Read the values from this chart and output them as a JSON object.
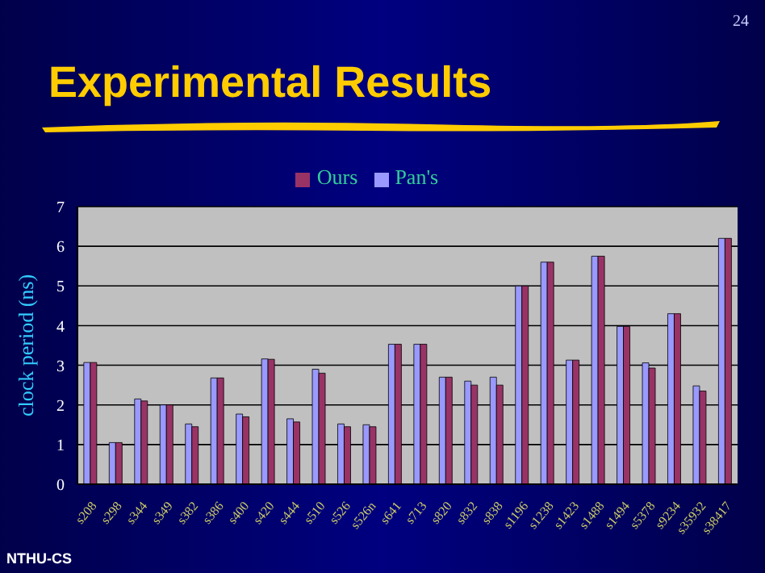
{
  "chart_data": {
    "type": "bar",
    "title": "Experimental Results",
    "ylabel": "clock period (ns)",
    "categories": [
      "s208",
      "s298",
      "s344",
      "s349",
      "s382",
      "s386",
      "s400",
      "s420",
      "s444",
      "s510",
      "s526",
      "s526n",
      "s641",
      "s713",
      "s820",
      "s832",
      "s838",
      "s1196",
      "s1238",
      "s1423",
      "s1488",
      "s1494",
      "s5378",
      "s9234",
      "s35932",
      "s38417"
    ],
    "series": [
      {
        "name": "Pan's",
        "color": "#9999ff",
        "values": [
          3.07,
          1.05,
          2.15,
          2.0,
          1.52,
          2.68,
          1.77,
          3.16,
          1.65,
          2.9,
          1.52,
          1.5,
          3.53,
          3.53,
          2.7,
          2.6,
          2.7,
          5.0,
          5.6,
          3.13,
          5.75,
          3.98,
          3.06,
          4.3,
          2.48,
          6.2
        ]
      },
      {
        "name": "Ours",
        "color": "#993366",
        "values": [
          3.07,
          1.05,
          2.1,
          2.0,
          1.45,
          2.68,
          1.7,
          3.15,
          1.57,
          2.8,
          1.45,
          1.45,
          3.53,
          3.53,
          2.7,
          2.5,
          2.5,
          5.0,
          5.6,
          3.13,
          5.75,
          3.98,
          2.93,
          4.3,
          2.35,
          6.2
        ]
      }
    ],
    "ylim": [
      0,
      7
    ],
    "yticks": [
      0,
      1,
      2,
      3,
      4,
      5,
      6,
      7
    ],
    "grid": "y",
    "legend": "top",
    "annotations": [
      "24",
      "NTHU-CS"
    ]
  }
}
